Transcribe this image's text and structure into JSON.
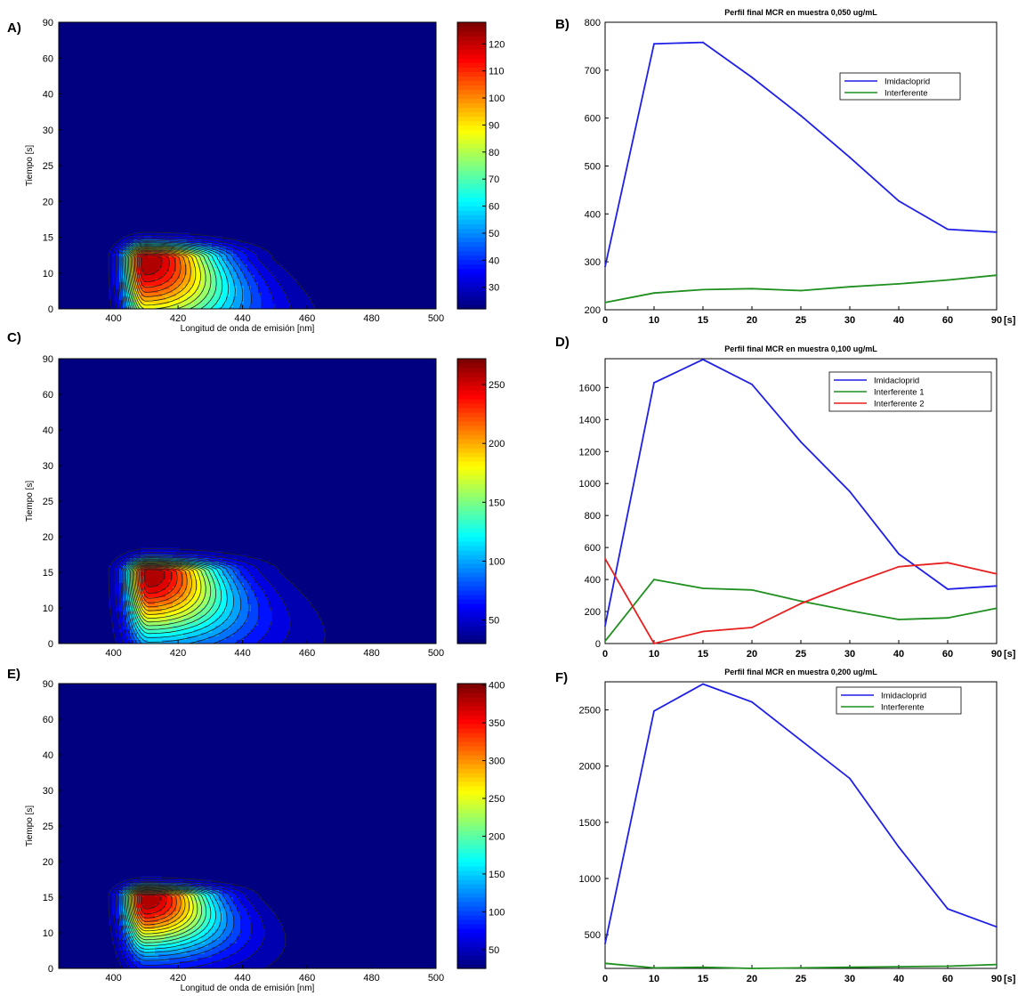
{
  "chart_data": [
    {
      "panel": "A)",
      "type": "heatmap",
      "xlabel": "Longitud de onda de emisión [nm]",
      "ylabel": "Tiempo [s]",
      "xticks": [
        400,
        420,
        440,
        460,
        480,
        500
      ],
      "yticks": [
        "0",
        "10",
        "15",
        "20",
        "25",
        "30",
        "40",
        "60",
        "90"
      ],
      "xlim": [
        383,
        500
      ],
      "ylim": [
        0,
        90
      ],
      "colorbar": {
        "min": 22,
        "max": 128,
        "ticks": [
          30,
          40,
          50,
          60,
          70,
          80,
          90,
          100,
          110,
          120
        ]
      },
      "peak": {
        "x": 410,
        "y": 12
      },
      "levels": 21
    },
    {
      "panel": "B)",
      "type": "line",
      "title": "Perfil final MCR en muestra 0,050 ug/mL",
      "x": [
        "0",
        "10",
        "15",
        "20",
        "25",
        "30",
        "40",
        "60",
        "90"
      ],
      "x_unit": "[s]",
      "ylim": [
        200,
        800
      ],
      "yticks": [
        200,
        300,
        400,
        500,
        600,
        700,
        800
      ],
      "legend_pos": "upper-right",
      "series": [
        {
          "name": "Imidacloprid",
          "color": "#1f1fe8",
          "values": [
            290,
            755,
            758,
            685,
            605,
            518,
            427,
            368,
            362
          ]
        },
        {
          "name": "Interferente",
          "color": "#1f8f1f",
          "values": [
            215,
            235,
            242,
            244,
            240,
            248,
            254,
            262,
            272
          ]
        }
      ]
    },
    {
      "panel": "C)",
      "type": "heatmap",
      "xlabel": "",
      "ylabel": "Tiempo [s]",
      "xticks": [
        400,
        420,
        440,
        460,
        480,
        500
      ],
      "yticks": [
        "0",
        "10",
        "15",
        "20",
        "25",
        "30",
        "40",
        "60",
        "90"
      ],
      "xlim": [
        383,
        500
      ],
      "ylim": [
        0,
        90
      ],
      "colorbar": {
        "min": 30,
        "max": 272,
        "ticks": [
          50,
          100,
          150,
          200,
          250
        ]
      },
      "peak": {
        "x": 411,
        "y": 15
      },
      "levels": 21
    },
    {
      "panel": "D)",
      "type": "line",
      "title": "Perfil final MCR en muestra 0,100 ug/mL",
      "x": [
        "0",
        "10",
        "15",
        "20",
        "25",
        "30",
        "40",
        "60",
        "90"
      ],
      "x_unit": "[s]",
      "ylim": [
        0,
        1780
      ],
      "yticks": [
        0,
        200,
        400,
        600,
        800,
        1000,
        1200,
        1400,
        1600
      ],
      "legend_pos": "top-right",
      "series": [
        {
          "name": "Imidacloprid",
          "color": "#1f1fe8",
          "values": [
            110,
            1630,
            1775,
            1620,
            1260,
            950,
            560,
            340,
            360
          ]
        },
        {
          "name": "Interferente 1",
          "color": "#1f8f1f",
          "values": [
            15,
            400,
            345,
            335,
            265,
            205,
            150,
            160,
            220
          ]
        },
        {
          "name": "Interferente 2",
          "color": "#e81f1f",
          "values": [
            530,
            0,
            75,
            100,
            250,
            370,
            480,
            505,
            435
          ]
        }
      ]
    },
    {
      "panel": "E)",
      "type": "heatmap",
      "xlabel": "Longitud de onda de emisión [nm]",
      "ylabel": "Tiempo [s]",
      "xticks": [
        400,
        420,
        440,
        460,
        480,
        500
      ],
      "yticks": [
        "0",
        "10",
        "15",
        "20",
        "25",
        "30",
        "40",
        "60",
        "90"
      ],
      "xlim": [
        383,
        500
      ],
      "ylim": [
        0,
        90
      ],
      "colorbar": {
        "min": 25,
        "max": 402,
        "ticks": [
          50,
          100,
          150,
          200,
          250,
          300,
          350,
          400
        ]
      },
      "peak": {
        "x": 410,
        "y": 15
      },
      "levels": 21
    },
    {
      "panel": "F)",
      "type": "line",
      "title": "Perfil final MCR en muestra 0,200 ug/mL",
      "x": [
        "0",
        "10",
        "15",
        "20",
        "25",
        "30",
        "40",
        "60",
        "90"
      ],
      "x_unit": "[s]",
      "ylim": [
        200,
        2750
      ],
      "yticks": [
        500,
        1000,
        1500,
        2000,
        2500
      ],
      "legend_pos": "upper-right",
      "series": [
        {
          "name": "Imidacloprid",
          "color": "#1f1fe8",
          "values": [
            420,
            2490,
            2730,
            2570,
            2230,
            1890,
            1280,
            730,
            570
          ]
        },
        {
          "name": "Interferente",
          "color": "#1f8f1f",
          "values": [
            245,
            205,
            210,
            200,
            205,
            210,
            215,
            220,
            235
          ]
        }
      ]
    }
  ]
}
